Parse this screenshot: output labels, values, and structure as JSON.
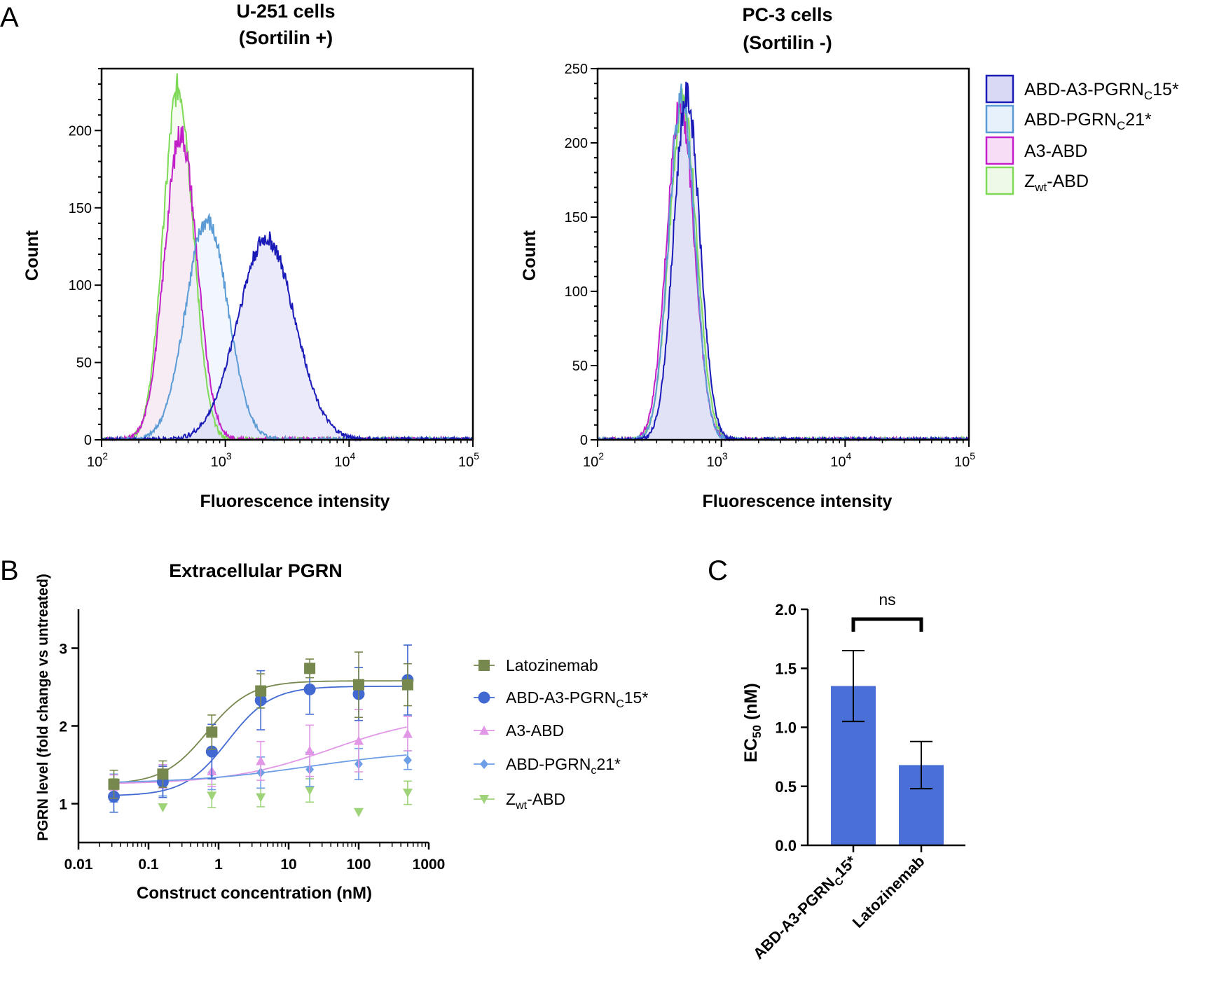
{
  "panels": {
    "A": {
      "letter": "A"
    },
    "B": {
      "letter": "B"
    },
    "C": {
      "letter": "C"
    }
  },
  "colors": {
    "abd_a3": "#1a1ab8",
    "abd_a3_fill": "#d9d9f5",
    "abd_pgrn21": "#5b9bd5",
    "abd_pgrn21_fill": "#e6f1fb",
    "a3_abd": "#c21fc9",
    "a3_abd_fill": "#f8ddf6",
    "zwt_abd": "#7ed957",
    "zwt_abd_fill": "#eef9e8",
    "latozinemab": "#76884e",
    "abd_a3_b": "#4169d1",
    "a3_abd_b": "#e196e6",
    "abd_pgrn21_b": "#6d9ee6",
    "zwt_abd_b": "#9fd37a",
    "bar": "#4a6fd6"
  },
  "legend_A": [
    {
      "main": "ABD-A3-PGRN",
      "sub": "C",
      "tail": "15*",
      "key": "abd_a3"
    },
    {
      "main": "ABD-PGRN",
      "sub": "C",
      "tail": "21*",
      "key": "abd_pgrn21"
    },
    {
      "main": "A3-ABD",
      "sub": "",
      "tail": "",
      "key": "a3_abd"
    },
    {
      "main": "Z",
      "sub": "wt",
      "tail": "-ABD",
      "key": "zwt_abd"
    }
  ],
  "legend_B": [
    {
      "main": "Latozinemab",
      "sub": "",
      "tail": ""
    },
    {
      "main": "ABD-A3-PGRN",
      "sub": "C",
      "tail": "15*"
    },
    {
      "main": "A3-ABD",
      "sub": "",
      "tail": ""
    },
    {
      "main": "ABD-PGRN",
      "sub": "c",
      "tail": "21*"
    },
    {
      "main": "Z",
      "sub": "wt",
      "tail": "-ABD"
    }
  ],
  "chart_data": [
    {
      "id": "A-left",
      "type": "area",
      "title": [
        "U-251 cells",
        "(Sortilin +)"
      ],
      "xlabel": "Fluorescence intensity",
      "ylabel": "Count",
      "xscale": "log",
      "xlim": [
        100,
        100000
      ],
      "ylim": [
        0,
        240
      ],
      "xticks": [
        {
          "base": "10",
          "exp": "2"
        },
        {
          "base": "10",
          "exp": "3"
        },
        {
          "base": "10",
          "exp": "4"
        },
        {
          "base": "10",
          "exp": "5"
        }
      ],
      "yticks": [
        0,
        50,
        100,
        150,
        200
      ],
      "series": [
        {
          "name": "Zwt-ABD",
          "key": "zwt_abd",
          "log_peak": 2.62,
          "peak": 228,
          "width": 0.12
        },
        {
          "name": "A3-ABD",
          "key": "a3_abd",
          "log_peak": 2.64,
          "peak": 198,
          "width": 0.13
        },
        {
          "name": "ABD-PGRNC21*",
          "key": "abd_pgrn21",
          "log_peak": 2.85,
          "peak": 142,
          "width": 0.17
        },
        {
          "name": "ABD-A3-PGRNC15*",
          "key": "abd_a3",
          "log_peak": 3.33,
          "peak": 130,
          "width": 0.23
        }
      ]
    },
    {
      "id": "A-right",
      "type": "area",
      "title": [
        "PC-3 cells",
        "(Sortilin -)"
      ],
      "xlabel": "Fluorescence intensity",
      "ylabel": "Count",
      "xscale": "log",
      "xlim": [
        100,
        100000
      ],
      "ylim": [
        0,
        250
      ],
      "xticks": [
        {
          "base": "10",
          "exp": "2"
        },
        {
          "base": "10",
          "exp": "3"
        },
        {
          "base": "10",
          "exp": "4"
        },
        {
          "base": "10",
          "exp": "5"
        }
      ],
      "yticks": [
        0,
        50,
        100,
        150,
        200,
        250
      ],
      "series": [
        {
          "name": "Zwt-ABD",
          "key": "zwt_abd",
          "log_peak": 2.69,
          "peak": 228,
          "width": 0.11
        },
        {
          "name": "A3-ABD",
          "key": "a3_abd",
          "log_peak": 2.67,
          "peak": 226,
          "width": 0.11
        },
        {
          "name": "ABD-PGRNC21*",
          "key": "abd_pgrn21",
          "log_peak": 2.68,
          "peak": 230,
          "width": 0.105
        },
        {
          "name": "ABD-A3-PGRNC15*",
          "key": "abd_a3",
          "log_peak": 2.72,
          "peak": 232,
          "width": 0.105
        }
      ]
    },
    {
      "id": "B",
      "type": "scatter",
      "title": "Extracellular PGRN",
      "xlabel": "Construct concentration (nM)",
      "ylabel": "PGRN level (fold change vs untreated)",
      "xscale": "log",
      "xlim": [
        0.01,
        1000
      ],
      "ylim": [
        0.5,
        3.5
      ],
      "xticks": [
        "0.01",
        "0.1",
        "1",
        "10",
        "100",
        "1000"
      ],
      "yticks": [
        "1",
        "2",
        "3"
      ],
      "x": [
        0.032,
        0.16,
        0.8,
        4,
        20,
        100,
        500
      ],
      "series": [
        {
          "name": "Latozinemab",
          "key": "latozinemab",
          "marker": "square",
          "values": [
            1.25,
            1.38,
            1.92,
            2.45,
            2.74,
            2.53,
            2.53
          ],
          "errors": [
            0.18,
            0.17,
            0.22,
            0.22,
            0.12,
            0.42,
            0.27
          ],
          "fit": {
            "bottom": 1.25,
            "top": 2.58,
            "ec50": 0.68,
            "hill": 1.4
          }
        },
        {
          "name": "ABD-A3-PGRNC15*",
          "key": "abd_a3_b",
          "marker": "circle",
          "values": [
            1.09,
            1.28,
            1.67,
            2.33,
            2.47,
            2.41,
            2.59
          ],
          "errors": [
            0.2,
            0.2,
            0.35,
            0.38,
            0.32,
            0.34,
            0.45
          ],
          "fit": {
            "bottom": 1.1,
            "top": 2.51,
            "ec50": 1.35,
            "hill": 1.4
          }
        },
        {
          "name": "A3-ABD",
          "key": "a3_abd_b",
          "marker": "triangle-up",
          "values": [
            1.22,
            1.35,
            1.42,
            1.55,
            1.68,
            1.81,
            1.9
          ],
          "errors": [
            0.15,
            0.15,
            0.2,
            0.25,
            0.33,
            0.4,
            0.22
          ],
          "fit": {
            "bottom": 1.25,
            "top": 2.15,
            "ec50": 40,
            "hill": 0.6
          }
        },
        {
          "name": "ABD-PGRNc21*",
          "key": "abd_pgrn21_b",
          "marker": "diamond",
          "values": [
            1.2,
            1.3,
            1.4,
            1.4,
            1.44,
            1.51,
            1.56
          ],
          "errors": [
            0.18,
            0.2,
            0.22,
            0.2,
            0.22,
            0.2,
            0.12
          ],
          "fit": {
            "bottom": 1.26,
            "top": 1.7,
            "ec50": 20,
            "hill": 0.5
          }
        },
        {
          "name": "Zwt-ABD",
          "key": "zwt_abd_b",
          "marker": "triangle-down",
          "values": [
            1.2,
            0.95,
            1.1,
            1.08,
            1.17,
            0.89,
            1.14
          ],
          "errors": [
            0.12,
            0.0,
            0.15,
            0.12,
            0.15,
            0.0,
            0.15
          ]
        }
      ]
    },
    {
      "id": "C",
      "type": "bar",
      "ylabel_main": "EC",
      "ylabel_sub": "50",
      "ylabel_tail": " (nM)",
      "ylim": [
        0,
        2.0
      ],
      "yticks": [
        "0.0",
        "0.5",
        "1.0",
        "1.5",
        "2.0"
      ],
      "categories": [
        {
          "main": "ABD-A3-PGRN",
          "sub": "C",
          "tail": "15*"
        },
        {
          "main": "Latozinemab",
          "sub": "",
          "tail": ""
        }
      ],
      "values": [
        1.35,
        0.68
      ],
      "errors": [
        0.3,
        0.2
      ],
      "annotation": "ns"
    }
  ]
}
